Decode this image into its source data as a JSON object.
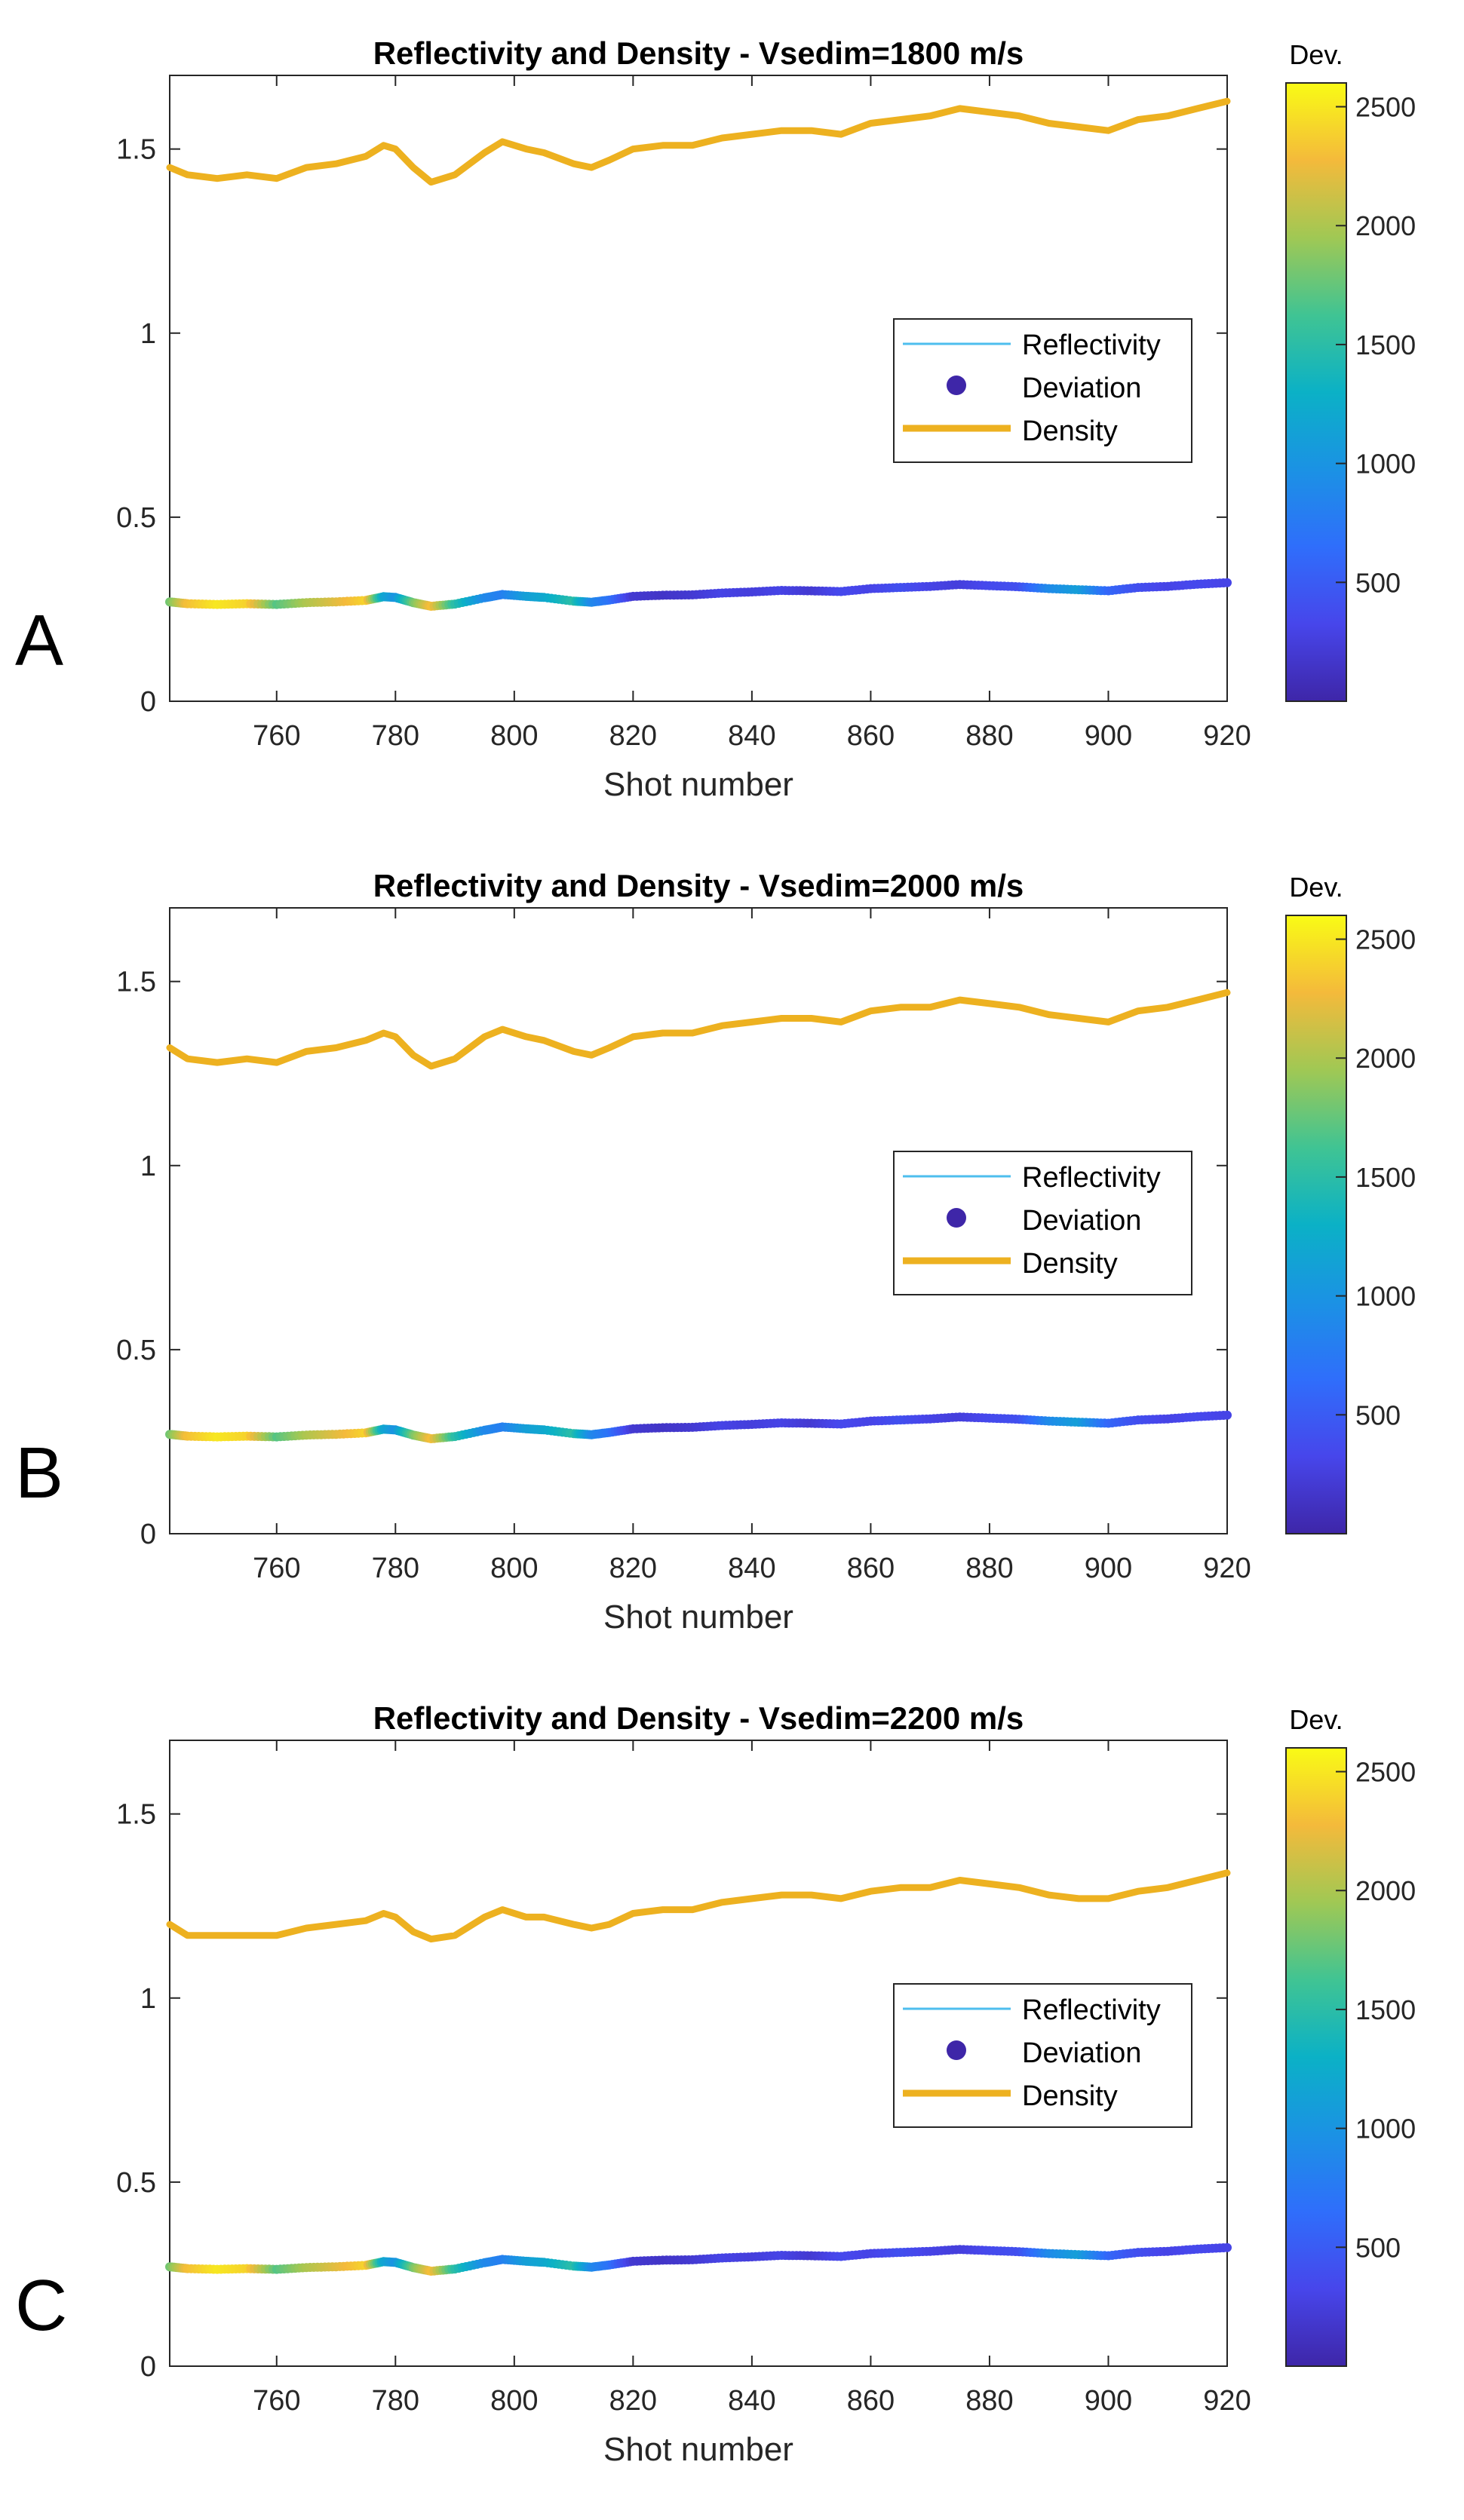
{
  "chart_data": [
    {
      "type": "line",
      "panel_label": "A",
      "title": "Reflectivity and Density - Vsedim=1800 m/s",
      "xlabel": "Shot number",
      "ylabel": "",
      "xlim": [
        742,
        920
      ],
      "ylim": [
        0,
        1.7
      ],
      "xticks": [
        760,
        780,
        800,
        820,
        840,
        860,
        880,
        900,
        920
      ],
      "yticks": [
        0,
        0.5,
        1,
        1.5
      ],
      "ytick_labels": [
        "0",
        "0.5",
        "1",
        "1.5"
      ],
      "grid": false,
      "legend": {
        "placement": "right",
        "entries": [
          "Reflectivity",
          "Deviation",
          "Density"
        ]
      },
      "colorbar": {
        "title": "Dev.",
        "range": [
          0,
          2600
        ],
        "ticks": [
          500,
          1000,
          1500,
          2000,
          2500
        ],
        "colormap": "parula"
      },
      "series": [
        {
          "name": "Density",
          "color": "#EDB120",
          "x": [
            742,
            745,
            750,
            755,
            760,
            765,
            770,
            775,
            778,
            780,
            783,
            786,
            790,
            795,
            798,
            802,
            805,
            810,
            813,
            816,
            820,
            825,
            830,
            835,
            840,
            845,
            850,
            855,
            860,
            865,
            870,
            875,
            880,
            885,
            890,
            895,
            900,
            905,
            910,
            915,
            920
          ],
          "values": [
            1.45,
            1.43,
            1.42,
            1.43,
            1.42,
            1.45,
            1.46,
            1.48,
            1.51,
            1.5,
            1.45,
            1.41,
            1.43,
            1.49,
            1.52,
            1.5,
            1.49,
            1.46,
            1.45,
            1.47,
            1.5,
            1.51,
            1.51,
            1.53,
            1.54,
            1.55,
            1.55,
            1.54,
            1.57,
            1.58,
            1.59,
            1.61,
            1.6,
            1.59,
            1.57,
            1.56,
            1.55,
            1.58,
            1.59,
            1.61,
            1.63
          ]
        },
        {
          "name": "Reflectivity",
          "color": "#4DBEEE",
          "x": [
            742,
            745,
            750,
            755,
            760,
            765,
            770,
            775,
            778,
            780,
            783,
            786,
            790,
            795,
            798,
            802,
            805,
            810,
            813,
            816,
            820,
            825,
            830,
            835,
            840,
            845,
            850,
            855,
            860,
            865,
            870,
            875,
            880,
            885,
            890,
            895,
            900,
            905,
            910,
            915,
            920
          ],
          "values": [
            0.27,
            0.265,
            0.263,
            0.265,
            0.263,
            0.268,
            0.27,
            0.274,
            0.284,
            0.282,
            0.268,
            0.258,
            0.264,
            0.281,
            0.29,
            0.285,
            0.282,
            0.272,
            0.269,
            0.275,
            0.285,
            0.288,
            0.289,
            0.294,
            0.297,
            0.301,
            0.3,
            0.298,
            0.306,
            0.309,
            0.312,
            0.317,
            0.314,
            0.311,
            0.306,
            0.303,
            0.3,
            0.309,
            0.312,
            0.318,
            0.322
          ]
        },
        {
          "name": "Deviation",
          "x": [
            742,
            745,
            750,
            755,
            760,
            765,
            770,
            775,
            778,
            780,
            783,
            786,
            790,
            795,
            798,
            802,
            805,
            810,
            813,
            816,
            820,
            825,
            830,
            835,
            840,
            845,
            850,
            855,
            860,
            865,
            870,
            875,
            880,
            885,
            890,
            895,
            900,
            905,
            910,
            915,
            920
          ],
          "values": [
            0.27,
            0.265,
            0.263,
            0.265,
            0.263,
            0.268,
            0.27,
            0.274,
            0.284,
            0.282,
            0.268,
            0.258,
            0.264,
            0.281,
            0.29,
            0.285,
            0.282,
            0.272,
            0.269,
            0.275,
            0.285,
            0.288,
            0.289,
            0.294,
            0.297,
            0.301,
            0.3,
            0.298,
            0.306,
            0.309,
            0.312,
            0.317,
            0.314,
            0.311,
            0.306,
            0.303,
            0.3,
            0.309,
            0.312,
            0.318,
            0.322
          ],
          "color_values": [
            1800,
            2300,
            2500,
            2400,
            1700,
            2000,
            2200,
            2400,
            1200,
            1000,
            1800,
            2300,
            1500,
            900,
            800,
            1100,
            1200,
            1500,
            900,
            700,
            200,
            150,
            200,
            300,
            250,
            300,
            200,
            350,
            300,
            400,
            300,
            250,
            350,
            400,
            900,
            1100,
            600,
            400,
            300,
            350,
            300
          ]
        }
      ]
    },
    {
      "type": "line",
      "panel_label": "B",
      "title": "Reflectivity and Density - Vsedim=2000 m/s",
      "xlabel": "Shot number",
      "ylabel": "",
      "xlim": [
        742,
        920
      ],
      "ylim": [
        0,
        1.7
      ],
      "xticks": [
        760,
        780,
        800,
        820,
        840,
        860,
        880,
        900,
        920
      ],
      "yticks": [
        0,
        0.5,
        1,
        1.5
      ],
      "ytick_labels": [
        "0",
        "0.5",
        "1",
        "1.5"
      ],
      "grid": false,
      "legend": {
        "placement": "right",
        "entries": [
          "Reflectivity",
          "Deviation",
          "Density"
        ]
      },
      "colorbar": {
        "title": "Dev.",
        "range": [
          0,
          2600
        ],
        "ticks": [
          500,
          1000,
          1500,
          2000,
          2500
        ],
        "colormap": "parula"
      },
      "series": [
        {
          "name": "Density",
          "color": "#EDB120",
          "x": [
            742,
            745,
            750,
            755,
            760,
            765,
            770,
            775,
            778,
            780,
            783,
            786,
            790,
            795,
            798,
            802,
            805,
            810,
            813,
            816,
            820,
            825,
            830,
            835,
            840,
            845,
            850,
            855,
            860,
            865,
            870,
            875,
            880,
            885,
            890,
            895,
            900,
            905,
            910,
            915,
            920
          ],
          "values": [
            1.32,
            1.29,
            1.28,
            1.29,
            1.28,
            1.31,
            1.32,
            1.34,
            1.36,
            1.35,
            1.3,
            1.27,
            1.29,
            1.35,
            1.37,
            1.35,
            1.34,
            1.31,
            1.3,
            1.32,
            1.35,
            1.36,
            1.36,
            1.38,
            1.39,
            1.4,
            1.4,
            1.39,
            1.42,
            1.43,
            1.43,
            1.45,
            1.44,
            1.43,
            1.41,
            1.4,
            1.39,
            1.42,
            1.43,
            1.45,
            1.47
          ]
        },
        {
          "name": "Reflectivity",
          "color": "#4DBEEE",
          "x": [
            742,
            745,
            750,
            755,
            760,
            765,
            770,
            775,
            778,
            780,
            783,
            786,
            790,
            795,
            798,
            802,
            805,
            810,
            813,
            816,
            820,
            825,
            830,
            835,
            840,
            845,
            850,
            855,
            860,
            865,
            870,
            875,
            880,
            885,
            890,
            895,
            900,
            905,
            910,
            915,
            920
          ],
          "values": [
            0.27,
            0.265,
            0.263,
            0.265,
            0.263,
            0.268,
            0.27,
            0.274,
            0.284,
            0.282,
            0.268,
            0.258,
            0.264,
            0.281,
            0.29,
            0.285,
            0.282,
            0.272,
            0.269,
            0.275,
            0.285,
            0.288,
            0.289,
            0.294,
            0.297,
            0.301,
            0.3,
            0.298,
            0.306,
            0.309,
            0.312,
            0.317,
            0.314,
            0.311,
            0.306,
            0.303,
            0.3,
            0.309,
            0.312,
            0.318,
            0.322
          ]
        },
        {
          "name": "Deviation",
          "x": [
            742,
            745,
            750,
            755,
            760,
            765,
            770,
            775,
            778,
            780,
            783,
            786,
            790,
            795,
            798,
            802,
            805,
            810,
            813,
            816,
            820,
            825,
            830,
            835,
            840,
            845,
            850,
            855,
            860,
            865,
            870,
            875,
            880,
            885,
            890,
            895,
            900,
            905,
            910,
            915,
            920
          ],
          "values": [
            0.27,
            0.265,
            0.263,
            0.265,
            0.263,
            0.268,
            0.27,
            0.274,
            0.284,
            0.282,
            0.268,
            0.258,
            0.264,
            0.281,
            0.29,
            0.285,
            0.282,
            0.272,
            0.269,
            0.275,
            0.285,
            0.288,
            0.289,
            0.294,
            0.297,
            0.301,
            0.3,
            0.298,
            0.306,
            0.309,
            0.312,
            0.317,
            0.314,
            0.311,
            0.306,
            0.303,
            0.3,
            0.309,
            0.312,
            0.318,
            0.322
          ],
          "color_values": [
            1800,
            2300,
            2500,
            2400,
            1700,
            2000,
            2200,
            2400,
            1200,
            1000,
            1800,
            2300,
            1500,
            900,
            800,
            1100,
            1200,
            1500,
            900,
            700,
            200,
            150,
            200,
            300,
            250,
            300,
            200,
            350,
            300,
            400,
            300,
            250,
            350,
            400,
            900,
            1100,
            600,
            400,
            300,
            350,
            300
          ]
        }
      ]
    },
    {
      "type": "line",
      "panel_label": "C",
      "title": "Reflectivity and Density - Vsedim=2200 m/s",
      "xlabel": "Shot number",
      "ylabel": "",
      "xlim": [
        742,
        920
      ],
      "ylim": [
        0,
        1.7
      ],
      "xticks": [
        760,
        780,
        800,
        820,
        840,
        860,
        880,
        900,
        920
      ],
      "yticks": [
        0,
        0.5,
        1,
        1.5
      ],
      "ytick_labels": [
        "0",
        "0.5",
        "1",
        "1.5"
      ],
      "grid": false,
      "legend": {
        "placement": "right",
        "entries": [
          "Reflectivity",
          "Deviation",
          "Density"
        ]
      },
      "colorbar": {
        "title": "Dev.",
        "range": [
          0,
          2600
        ],
        "ticks": [
          500,
          1000,
          1500,
          2000,
          2500
        ],
        "colormap": "parula"
      },
      "series": [
        {
          "name": "Density",
          "color": "#EDB120",
          "x": [
            742,
            745,
            750,
            755,
            760,
            765,
            770,
            775,
            778,
            780,
            783,
            786,
            790,
            795,
            798,
            802,
            805,
            810,
            813,
            816,
            820,
            825,
            830,
            835,
            840,
            845,
            850,
            855,
            860,
            865,
            870,
            875,
            880,
            885,
            890,
            895,
            900,
            905,
            910,
            915,
            920
          ],
          "values": [
            1.2,
            1.17,
            1.17,
            1.17,
            1.17,
            1.19,
            1.2,
            1.21,
            1.23,
            1.22,
            1.18,
            1.16,
            1.17,
            1.22,
            1.24,
            1.22,
            1.22,
            1.2,
            1.19,
            1.2,
            1.23,
            1.24,
            1.24,
            1.26,
            1.27,
            1.28,
            1.28,
            1.27,
            1.29,
            1.3,
            1.3,
            1.32,
            1.31,
            1.3,
            1.28,
            1.27,
            1.27,
            1.29,
            1.3,
            1.32,
            1.34
          ]
        },
        {
          "name": "Reflectivity",
          "color": "#4DBEEE",
          "x": [
            742,
            745,
            750,
            755,
            760,
            765,
            770,
            775,
            778,
            780,
            783,
            786,
            790,
            795,
            798,
            802,
            805,
            810,
            813,
            816,
            820,
            825,
            830,
            835,
            840,
            845,
            850,
            855,
            860,
            865,
            870,
            875,
            880,
            885,
            890,
            895,
            900,
            905,
            910,
            915,
            920
          ],
          "values": [
            0.27,
            0.265,
            0.263,
            0.265,
            0.263,
            0.268,
            0.27,
            0.274,
            0.284,
            0.282,
            0.268,
            0.258,
            0.264,
            0.281,
            0.29,
            0.285,
            0.282,
            0.272,
            0.269,
            0.275,
            0.285,
            0.288,
            0.289,
            0.294,
            0.297,
            0.301,
            0.3,
            0.298,
            0.306,
            0.309,
            0.312,
            0.317,
            0.314,
            0.311,
            0.306,
            0.303,
            0.3,
            0.309,
            0.312,
            0.318,
            0.322
          ]
        },
        {
          "name": "Deviation",
          "x": [
            742,
            745,
            750,
            755,
            760,
            765,
            770,
            775,
            778,
            780,
            783,
            786,
            790,
            795,
            798,
            802,
            805,
            810,
            813,
            816,
            820,
            825,
            830,
            835,
            840,
            845,
            850,
            855,
            860,
            865,
            870,
            875,
            880,
            885,
            890,
            895,
            900,
            905,
            910,
            915,
            920
          ],
          "values": [
            0.27,
            0.265,
            0.263,
            0.265,
            0.263,
            0.268,
            0.27,
            0.274,
            0.284,
            0.282,
            0.268,
            0.258,
            0.264,
            0.281,
            0.29,
            0.285,
            0.282,
            0.272,
            0.269,
            0.275,
            0.285,
            0.288,
            0.289,
            0.294,
            0.297,
            0.301,
            0.3,
            0.298,
            0.306,
            0.309,
            0.312,
            0.317,
            0.314,
            0.311,
            0.306,
            0.303,
            0.3,
            0.309,
            0.312,
            0.318,
            0.322
          ],
          "color_values": [
            1800,
            2300,
            2500,
            2400,
            1700,
            2000,
            2200,
            2400,
            1200,
            1000,
            1800,
            2300,
            1500,
            900,
            800,
            1100,
            1200,
            1500,
            900,
            700,
            200,
            150,
            200,
            300,
            250,
            300,
            200,
            350,
            300,
            400,
            300,
            250,
            350,
            400,
            900,
            1100,
            600,
            400,
            300,
            350,
            300
          ]
        }
      ]
    }
  ],
  "colors": {
    "density": "#EDB120",
    "reflectivity": "#4DBEEE",
    "deviation_marker": "#3E26A8",
    "axes": "#262626"
  }
}
